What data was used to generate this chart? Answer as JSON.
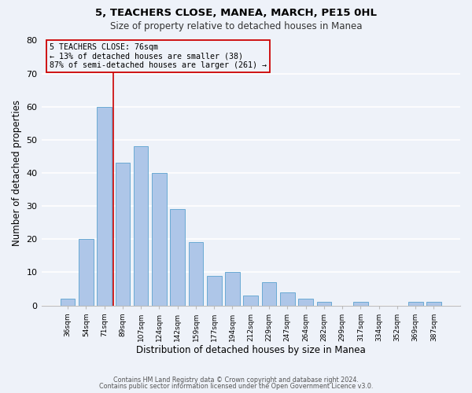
{
  "title": "5, TEACHERS CLOSE, MANEA, MARCH, PE15 0HL",
  "subtitle": "Size of property relative to detached houses in Manea",
  "xlabel": "Distribution of detached houses by size in Manea",
  "ylabel": "Number of detached properties",
  "bar_color": "#aec6e8",
  "bar_edge_color": "#6aaad4",
  "background_color": "#eef2f9",
  "grid_color": "#ffffff",
  "categories": [
    "36sqm",
    "54sqm",
    "71sqm",
    "89sqm",
    "107sqm",
    "124sqm",
    "142sqm",
    "159sqm",
    "177sqm",
    "194sqm",
    "212sqm",
    "229sqm",
    "247sqm",
    "264sqm",
    "282sqm",
    "299sqm",
    "317sqm",
    "334sqm",
    "352sqm",
    "369sqm",
    "387sqm"
  ],
  "values": [
    2,
    20,
    60,
    43,
    48,
    40,
    29,
    19,
    9,
    10,
    3,
    7,
    4,
    2,
    1,
    0,
    1,
    0,
    0,
    1,
    1
  ],
  "ylim": [
    0,
    80
  ],
  "yticks": [
    0,
    10,
    20,
    30,
    40,
    50,
    60,
    70,
    80
  ],
  "property_label": "5 TEACHERS CLOSE: 76sqm",
  "annotation_line1": "← 13% of detached houses are smaller (38)",
  "annotation_line2": "87% of semi-detached houses are larger (261) →",
  "vline_color": "#cc0000",
  "annotation_box_edge": "#cc0000",
  "vline_x": 2.5,
  "footer_line1": "Contains HM Land Registry data © Crown copyright and database right 2024.",
  "footer_line2": "Contains public sector information licensed under the Open Government Licence v3.0."
}
